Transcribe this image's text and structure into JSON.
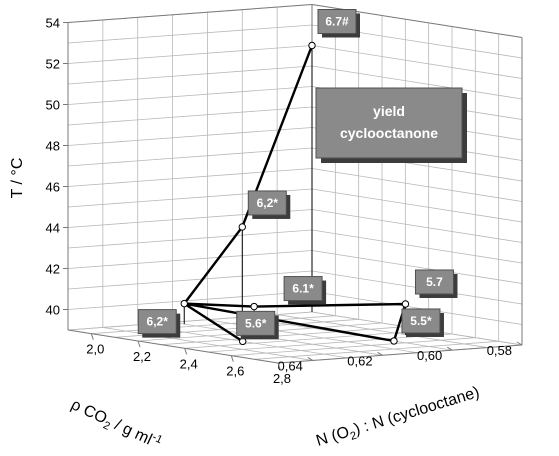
{
  "chart_data": {
    "type": "scatter",
    "subtype": "3d-line",
    "legend_box": [
      "yield",
      "cyclooctanone"
    ],
    "axes": {
      "z": {
        "label": "T / °C",
        "ticks": [
          40,
          42,
          44,
          46,
          48,
          50,
          52,
          54
        ],
        "range": [
          39,
          54
        ]
      },
      "x": {
        "label_parts": [
          "ρ CO",
          "2",
          " / g ml",
          "-1"
        ],
        "ticks": [
          "0,58",
          "0,60",
          "0,62",
          "0,64"
        ],
        "range": [
          0.58,
          0.65
        ]
      },
      "y": {
        "label_parts": [
          "N (O",
          "2",
          ") : N (cyclooctane)"
        ],
        "ticks": [
          "2,0",
          "2,2",
          "2,4",
          "2,6",
          "2,8"
        ],
        "range": [
          1.9,
          2.8
        ]
      }
    },
    "grid": true,
    "points": [
      {
        "id": "p1",
        "rho": 0.58,
        "ratio": 1.9,
        "T": 52,
        "label": "6.7#"
      },
      {
        "id": "p2",
        "rho": 0.6,
        "ratio": 1.9,
        "T": 43.4,
        "label": "6,2*"
      },
      {
        "id": "p3",
        "rho": 0.62,
        "ratio": 1.95,
        "T": 40,
        "label": "6,2*"
      },
      {
        "id": "p4",
        "rho": 0.61,
        "ratio": 2.1,
        "T": 40,
        "label": "6.1*"
      },
      {
        "id": "p5",
        "rho": 0.59,
        "ratio": 2.45,
        "T": 40.5,
        "label": "5.7"
      },
      {
        "id": "p6",
        "rho": 0.6,
        "ratio": 2.55,
        "T": 39,
        "label": "5.5*"
      },
      {
        "id": "p7",
        "rho": 0.63,
        "ratio": 2.35,
        "T": 39,
        "label": "5.6*"
      }
    ],
    "path": [
      "p1",
      "p2",
      "p3",
      "p4",
      "p5",
      "p6",
      "p3",
      "p7"
    ]
  }
}
